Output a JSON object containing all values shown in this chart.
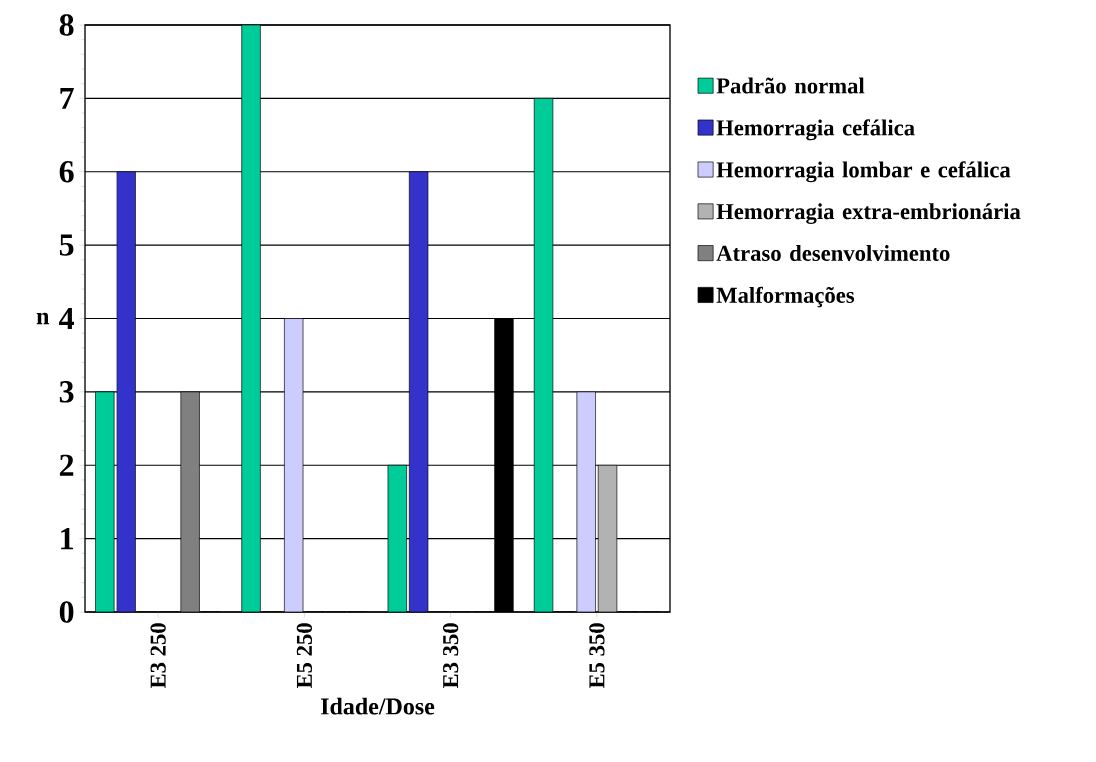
{
  "chart_data": {
    "type": "bar",
    "xlabel": "Idade/Dose",
    "ylabel": "n",
    "categories": [
      "E3 250",
      "E5 250",
      "E3 350",
      "E5 350"
    ],
    "series": [
      {
        "name": "Padrão normal",
        "color": "#00cc99",
        "values": [
          3,
          8,
          2,
          7
        ]
      },
      {
        "name": "Hemorragia cefálica",
        "color": "#3333cc",
        "values": [
          6,
          0,
          6,
          0
        ]
      },
      {
        "name": "Hemorragia lombar e cefálica",
        "color": "#ccccff",
        "values": [
          0,
          4,
          0,
          3
        ]
      },
      {
        "name": "Hemorragia extra-embrionária",
        "color": "#b2b2b2",
        "values": [
          0,
          0,
          0,
          2
        ]
      },
      {
        "name": "Atraso desenvolvimento",
        "color": "#808080",
        "values": [
          3,
          0,
          0,
          0
        ]
      },
      {
        "name": "Malformações",
        "color": "#000000",
        "values": [
          0,
          0,
          4,
          0
        ]
      }
    ],
    "ylim": [
      0,
      8
    ],
    "yticks": [
      0,
      1,
      2,
      3,
      4,
      5,
      6,
      7,
      8
    ],
    "grid": "y",
    "legend": "right"
  }
}
